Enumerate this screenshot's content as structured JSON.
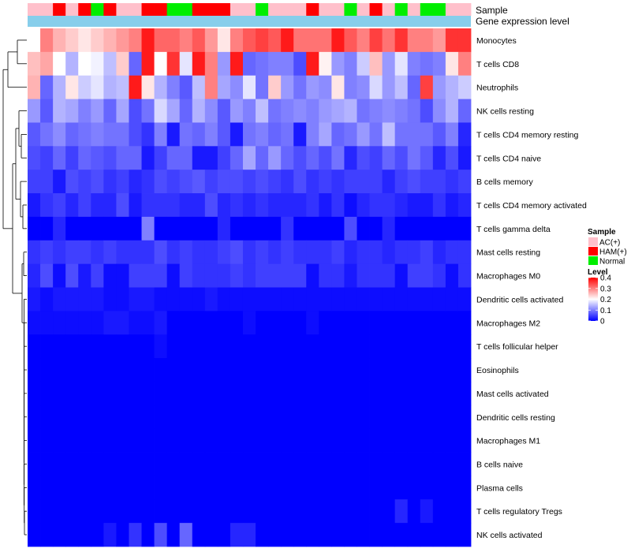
{
  "chart_data": {
    "type": "heatmap",
    "annotation_labels": {
      "sample": "Sample",
      "expression": "Gene expression level"
    },
    "sample_groups": [
      "AC(+)",
      "AC(+)",
      "HAM(+)",
      "AC(+)",
      "HAM(+)",
      "Normal",
      "HAM(+)",
      "AC(+)",
      "AC(+)",
      "HAM(+)",
      "HAM(+)",
      "Normal",
      "Normal",
      "HAM(+)",
      "HAM(+)",
      "HAM(+)",
      "AC(+)",
      "AC(+)",
      "Normal",
      "AC(+)",
      "AC(+)",
      "AC(+)",
      "HAM(+)",
      "AC(+)",
      "AC(+)",
      "Normal",
      "AC(+)",
      "HAM(+)",
      "AC(+)",
      "Normal",
      "AC(+)",
      "Normal",
      "Normal",
      "AC(+)",
      "AC(+)"
    ],
    "rows": [
      {
        "label": "Monocytes",
        "values": [
          0.2,
          0.3,
          0.26,
          0.24,
          0.22,
          0.24,
          0.26,
          0.28,
          0.3,
          0.38,
          0.32,
          0.32,
          0.3,
          0.33,
          0.28,
          0.22,
          0.3,
          0.33,
          0.35,
          0.33,
          0.38,
          0.31,
          0.31,
          0.31,
          0.38,
          0.33,
          0.3,
          0.35,
          0.31,
          0.36,
          0.3,
          0.3,
          0.28,
          0.36,
          0.36
        ]
      },
      {
        "label": "T cells CD8",
        "values": [
          0.25,
          0.27,
          0.2,
          0.14,
          0.2,
          0.19,
          0.15,
          0.24,
          0.08,
          0.38,
          0.2,
          0.36,
          0.18,
          0.38,
          0.3,
          0.12,
          0.38,
          0.08,
          0.09,
          0.1,
          0.1,
          0.06,
          0.38,
          0.21,
          0.12,
          0.1,
          0.16,
          0.25,
          0.12,
          0.18,
          0.1,
          0.09,
          0.1,
          0.22,
          0.3
        ]
      },
      {
        "label": "Neutrophils",
        "values": [
          0.26,
          0.08,
          0.14,
          0.22,
          0.16,
          0.18,
          0.14,
          0.15,
          0.38,
          0.22,
          0.14,
          0.1,
          0.07,
          0.15,
          0.3,
          0.13,
          0.11,
          0.18,
          0.09,
          0.24,
          0.12,
          0.09,
          0.12,
          0.11,
          0.22,
          0.1,
          0.11,
          0.17,
          0.12,
          0.15,
          0.08,
          0.35,
          0.12,
          0.14,
          0.16
        ]
      },
      {
        "label": "NK cells resting",
        "values": [
          0.12,
          0.07,
          0.14,
          0.13,
          0.1,
          0.12,
          0.08,
          0.13,
          0.06,
          0.09,
          0.17,
          0.13,
          0.08,
          0.14,
          0.11,
          0.07,
          0.12,
          0.1,
          0.15,
          0.09,
          0.1,
          0.11,
          0.1,
          0.12,
          0.13,
          0.14,
          0.09,
          0.1,
          0.11,
          0.1,
          0.09,
          0.06,
          0.11,
          0.14,
          0.08
        ]
      },
      {
        "label": "T cells CD4 memory resting",
        "values": [
          0.07,
          0.09,
          0.11,
          0.08,
          0.09,
          0.1,
          0.09,
          0.09,
          0.06,
          0.04,
          0.1,
          0.02,
          0.09,
          0.08,
          0.1,
          0.07,
          0.02,
          0.09,
          0.1,
          0.08,
          0.09,
          0.02,
          0.1,
          0.13,
          0.08,
          0.09,
          0.12,
          0.09,
          0.15,
          0.09,
          0.09,
          0.09,
          0.07,
          0.1,
          0.03
        ]
      },
      {
        "label": "T cells CD4 naive",
        "values": [
          0.06,
          0.05,
          0.08,
          0.05,
          0.08,
          0.07,
          0.06,
          0.08,
          0.08,
          0.02,
          0.05,
          0.08,
          0.08,
          0.02,
          0.02,
          0.05,
          0.08,
          0.13,
          0.08,
          0.12,
          0.08,
          0.06,
          0.08,
          0.06,
          0.09,
          0.03,
          0.06,
          0.05,
          0.08,
          0.06,
          0.09,
          0.07,
          0.03,
          0.06,
          0.02
        ]
      },
      {
        "label": "B cells memory",
        "values": [
          0.05,
          0.05,
          0.02,
          0.06,
          0.05,
          0.06,
          0.04,
          0.05,
          0.03,
          0.04,
          0.06,
          0.05,
          0.06,
          0.07,
          0.05,
          0.06,
          0.06,
          0.05,
          0.06,
          0.05,
          0.04,
          0.06,
          0.04,
          0.05,
          0.04,
          0.05,
          0.05,
          0.05,
          0.03,
          0.05,
          0.06,
          0.05,
          0.05,
          0.04,
          0.05
        ]
      },
      {
        "label": "T cells CD4 memory activated",
        "values": [
          0.02,
          0.04,
          0.05,
          0.03,
          0.05,
          0.03,
          0.03,
          0.06,
          0.02,
          0.04,
          0.04,
          0.04,
          0.03,
          0.03,
          0.06,
          0.03,
          0.04,
          0.03,
          0.04,
          0.03,
          0.03,
          0.03,
          0.04,
          0.02,
          0.04,
          0.01,
          0.03,
          0.04,
          0.04,
          0.03,
          0.02,
          0.02,
          0.04,
          0.02,
          0.03
        ]
      },
      {
        "label": "T cells gamma delta",
        "values": [
          0.0,
          0.0,
          0.03,
          0.0,
          0.0,
          0.0,
          0.0,
          0.0,
          0.0,
          0.1,
          0.0,
          0.0,
          0.0,
          0.0,
          0.0,
          0.03,
          0.0,
          0.0,
          0.0,
          0.0,
          0.04,
          0.0,
          0.0,
          0.0,
          0.0,
          0.06,
          0.0,
          0.0,
          0.03,
          0.0,
          0.0,
          0.0,
          0.0,
          0.0,
          0.0
        ]
      },
      {
        "label": "Mast cells resting",
        "values": [
          0.04,
          0.05,
          0.04,
          0.05,
          0.05,
          0.04,
          0.05,
          0.04,
          0.04,
          0.04,
          0.06,
          0.04,
          0.05,
          0.04,
          0.04,
          0.05,
          0.06,
          0.04,
          0.05,
          0.04,
          0.05,
          0.04,
          0.04,
          0.04,
          0.05,
          0.03,
          0.04,
          0.04,
          0.03,
          0.04,
          0.04,
          0.05,
          0.03,
          0.04,
          0.04
        ]
      },
      {
        "label": "Macrophages M0",
        "values": [
          0.03,
          0.06,
          0.01,
          0.06,
          0.02,
          0.05,
          0.01,
          0.01,
          0.05,
          0.05,
          0.05,
          0.01,
          0.05,
          0.04,
          0.04,
          0.04,
          0.05,
          0.04,
          0.05,
          0.05,
          0.05,
          0.05,
          0.01,
          0.04,
          0.04,
          0.02,
          0.04,
          0.04,
          0.04,
          0.01,
          0.05,
          0.05,
          0.04,
          0.01,
          0.04
        ]
      },
      {
        "label": "Dendritic cells activated",
        "values": [
          0.02,
          0.01,
          0.02,
          0.02,
          0.02,
          0.02,
          0.01,
          0.01,
          0.02,
          0.02,
          0.01,
          0.01,
          0.01,
          0.01,
          0.02,
          0.01,
          0.01,
          0.01,
          0.01,
          0.01,
          0.01,
          0.01,
          0.01,
          0.01,
          0.01,
          0.01,
          0.01,
          0.01,
          0.01,
          0.01,
          0.01,
          0.01,
          0.01,
          0.01,
          0.01
        ]
      },
      {
        "label": "Macrophages M2",
        "values": [
          0.01,
          0.01,
          0.01,
          0.01,
          0.01,
          0.01,
          0.02,
          0.02,
          0.01,
          0.01,
          0.02,
          0.0,
          0.0,
          0.0,
          0.0,
          0.0,
          0.0,
          0.01,
          0.0,
          0.0,
          0.0,
          0.0,
          0.01,
          0.0,
          0.0,
          0.0,
          0.0,
          0.0,
          0.0,
          0.0,
          0.0,
          0.0,
          0.0,
          0.0,
          0.0
        ]
      },
      {
        "label": "T cells follicular helper",
        "values": [
          0.0,
          0.0,
          0.0,
          0.0,
          0.0,
          0.0,
          0.0,
          0.0,
          0.0,
          0.0,
          0.01,
          0.0,
          0.0,
          0.0,
          0.0,
          0.0,
          0.0,
          0.0,
          0.0,
          0.0,
          0.0,
          0.0,
          0.0,
          0.0,
          0.0,
          0.0,
          0.0,
          0.0,
          0.0,
          0.0,
          0.0,
          0.0,
          0.0,
          0.0,
          0.0
        ]
      },
      {
        "label": "Eosinophils",
        "values": [
          0.0,
          0.0,
          0.0,
          0.0,
          0.0,
          0.0,
          0.0,
          0.0,
          0.0,
          0.0,
          0.0,
          0.0,
          0.0,
          0.0,
          0.0,
          0.0,
          0.0,
          0.0,
          0.0,
          0.0,
          0.0,
          0.0,
          0.0,
          0.0,
          0.0,
          0.0,
          0.0,
          0.0,
          0.0,
          0.0,
          0.0,
          0.0,
          0.0,
          0.0,
          0.0
        ]
      },
      {
        "label": "Mast cells activated",
        "values": [
          0.0,
          0.0,
          0.0,
          0.0,
          0.0,
          0.0,
          0.0,
          0.0,
          0.0,
          0.0,
          0.0,
          0.0,
          0.0,
          0.0,
          0.0,
          0.0,
          0.0,
          0.0,
          0.0,
          0.0,
          0.0,
          0.0,
          0.0,
          0.0,
          0.0,
          0.0,
          0.0,
          0.0,
          0.0,
          0.0,
          0.0,
          0.0,
          0.0,
          0.0,
          0.0
        ]
      },
      {
        "label": "Dendritic cells resting",
        "values": [
          0.0,
          0.0,
          0.0,
          0.0,
          0.0,
          0.0,
          0.0,
          0.0,
          0.0,
          0.0,
          0.0,
          0.0,
          0.0,
          0.0,
          0.0,
          0.0,
          0.0,
          0.0,
          0.0,
          0.0,
          0.0,
          0.0,
          0.0,
          0.0,
          0.0,
          0.0,
          0.0,
          0.0,
          0.0,
          0.0,
          0.0,
          0.0,
          0.0,
          0.0,
          0.0
        ]
      },
      {
        "label": "Macrophages M1",
        "values": [
          0.0,
          0.0,
          0.0,
          0.0,
          0.0,
          0.0,
          0.0,
          0.0,
          0.0,
          0.0,
          0.0,
          0.0,
          0.0,
          0.0,
          0.0,
          0.0,
          0.0,
          0.0,
          0.0,
          0.0,
          0.0,
          0.0,
          0.0,
          0.0,
          0.0,
          0.0,
          0.0,
          0.0,
          0.0,
          0.0,
          0.0,
          0.0,
          0.0,
          0.0,
          0.0
        ]
      },
      {
        "label": "B cells naive",
        "values": [
          0.0,
          0.0,
          0.0,
          0.0,
          0.0,
          0.0,
          0.0,
          0.0,
          0.0,
          0.0,
          0.0,
          0.0,
          0.0,
          0.0,
          0.0,
          0.0,
          0.0,
          0.0,
          0.0,
          0.0,
          0.0,
          0.0,
          0.0,
          0.0,
          0.0,
          0.0,
          0.0,
          0.0,
          0.0,
          0.0,
          0.0,
          0.0,
          0.0,
          0.0,
          0.0
        ]
      },
      {
        "label": "Plasma cells",
        "values": [
          0.0,
          0.0,
          0.0,
          0.0,
          0.0,
          0.0,
          0.0,
          0.0,
          0.0,
          0.0,
          0.0,
          0.0,
          0.0,
          0.0,
          0.0,
          0.0,
          0.0,
          0.0,
          0.0,
          0.0,
          0.0,
          0.0,
          0.0,
          0.0,
          0.0,
          0.0,
          0.0,
          0.0,
          0.0,
          0.0,
          0.0,
          0.0,
          0.0,
          0.0,
          0.0
        ]
      },
      {
        "label": "T cells regulatory  Tregs",
        "values": [
          0.0,
          0.0,
          0.0,
          0.0,
          0.0,
          0.0,
          0.0,
          0.0,
          0.0,
          0.0,
          0.0,
          0.0,
          0.0,
          0.0,
          0.0,
          0.0,
          0.0,
          0.0,
          0.0,
          0.0,
          0.0,
          0.0,
          0.0,
          0.0,
          0.0,
          0.0,
          0.0,
          0.0,
          0.0,
          0.03,
          0.0,
          0.02,
          0.0,
          0.0,
          0.0
        ]
      },
      {
        "label": "NK cells activated",
        "values": [
          0.0,
          0.0,
          0.0,
          0.0,
          0.0,
          0.0,
          0.02,
          0.0,
          0.04,
          0.0,
          0.06,
          0.0,
          0.08,
          0.0,
          0.0,
          0.0,
          0.03,
          0.03,
          0.0,
          0.0,
          0.0,
          0.0,
          0.0,
          0.0,
          0.0,
          0.0,
          0.0,
          0.0,
          0.0,
          0.0,
          0.0,
          0.0,
          0.0,
          0.0,
          0.0
        ]
      }
    ],
    "legend_sample": {
      "title": "Sample",
      "items": [
        {
          "label": "AC(+)",
          "color": "#ffc0cb"
        },
        {
          "label": "HAM(+)",
          "color": "#ff0000"
        },
        {
          "label": "Normal",
          "color": "#00ee00"
        }
      ]
    },
    "legend_level": {
      "title": "Level",
      "ticks": [
        "0.4",
        "0.3",
        "0.2",
        "0.1",
        "0"
      ],
      "range": [
        0,
        0.4
      ],
      "colors": [
        "#0000ff",
        "#ffffff",
        "#ff0000"
      ]
    },
    "expression_color": "#87ceeb"
  }
}
